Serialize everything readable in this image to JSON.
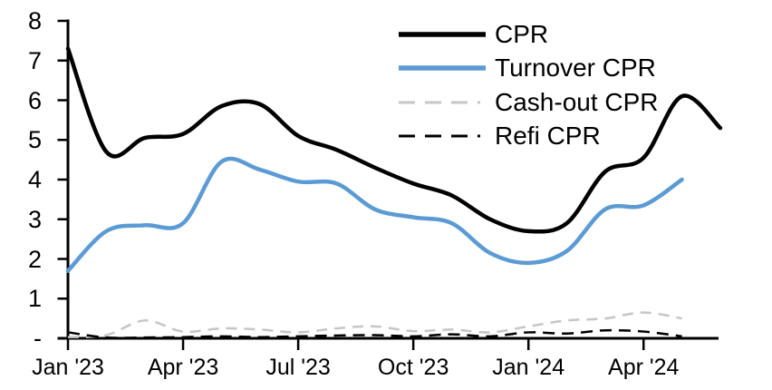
{
  "chart_data": {
    "type": "line",
    "title": "",
    "xlabel": "",
    "ylabel": "",
    "grid": false,
    "legend_position": "top-right",
    "x_axis": {
      "unit": "monthly",
      "months_total": 18,
      "tick_labels": [
        "Jan '23",
        "Apr '23",
        "Jul '23",
        "Oct '23",
        "Jan '24",
        "Apr '24"
      ],
      "tick_month_index": [
        0,
        3,
        6,
        9,
        12,
        15
      ]
    },
    "y_axis": {
      "tick_labels": [
        "8",
        "7",
        "6",
        "5",
        "4",
        "3",
        "2",
        "1",
        "-"
      ],
      "tick_values": [
        8,
        7,
        6,
        5,
        4,
        3,
        2,
        1,
        0
      ],
      "ylim": [
        0,
        8
      ]
    },
    "series": [
      {
        "name": "CPR",
        "color": "#000000",
        "dash": "solid",
        "width": 4.5,
        "values": [
          7.3,
          4.7,
          5.05,
          5.15,
          5.85,
          5.9,
          5.1,
          4.75,
          4.3,
          3.9,
          3.6,
          3.0,
          2.7,
          2.9,
          4.2,
          4.55,
          6.1,
          5.3
        ]
      },
      {
        "name": "Turnover CPR",
        "color": "#5B9BD5",
        "dash": "solid",
        "width": 4.5,
        "values": [
          1.7,
          2.7,
          2.85,
          2.9,
          4.45,
          4.25,
          3.95,
          3.9,
          3.25,
          3.05,
          2.9,
          2.15,
          1.9,
          2.2,
          3.25,
          3.35,
          4.0,
          null
        ]
      },
      {
        "name": "Cash-out CPR",
        "color": "#C6C6C6",
        "dash": "dashed",
        "width": 2.5,
        "values": [
          0.03,
          0.08,
          0.45,
          0.17,
          0.25,
          0.22,
          0.15,
          0.25,
          0.3,
          0.18,
          0.22,
          0.15,
          0.3,
          0.45,
          0.5,
          0.65,
          0.5,
          null
        ]
      },
      {
        "name": "Refi CPR",
        "color": "#000000",
        "dash": "dashed",
        "width": 2.5,
        "values": [
          0.15,
          0.02,
          0.02,
          0.03,
          0.05,
          0.03,
          0.05,
          0.07,
          0.08,
          0.05,
          0.1,
          0.05,
          0.15,
          0.12,
          0.2,
          0.17,
          0.05,
          null
        ]
      }
    ]
  }
}
